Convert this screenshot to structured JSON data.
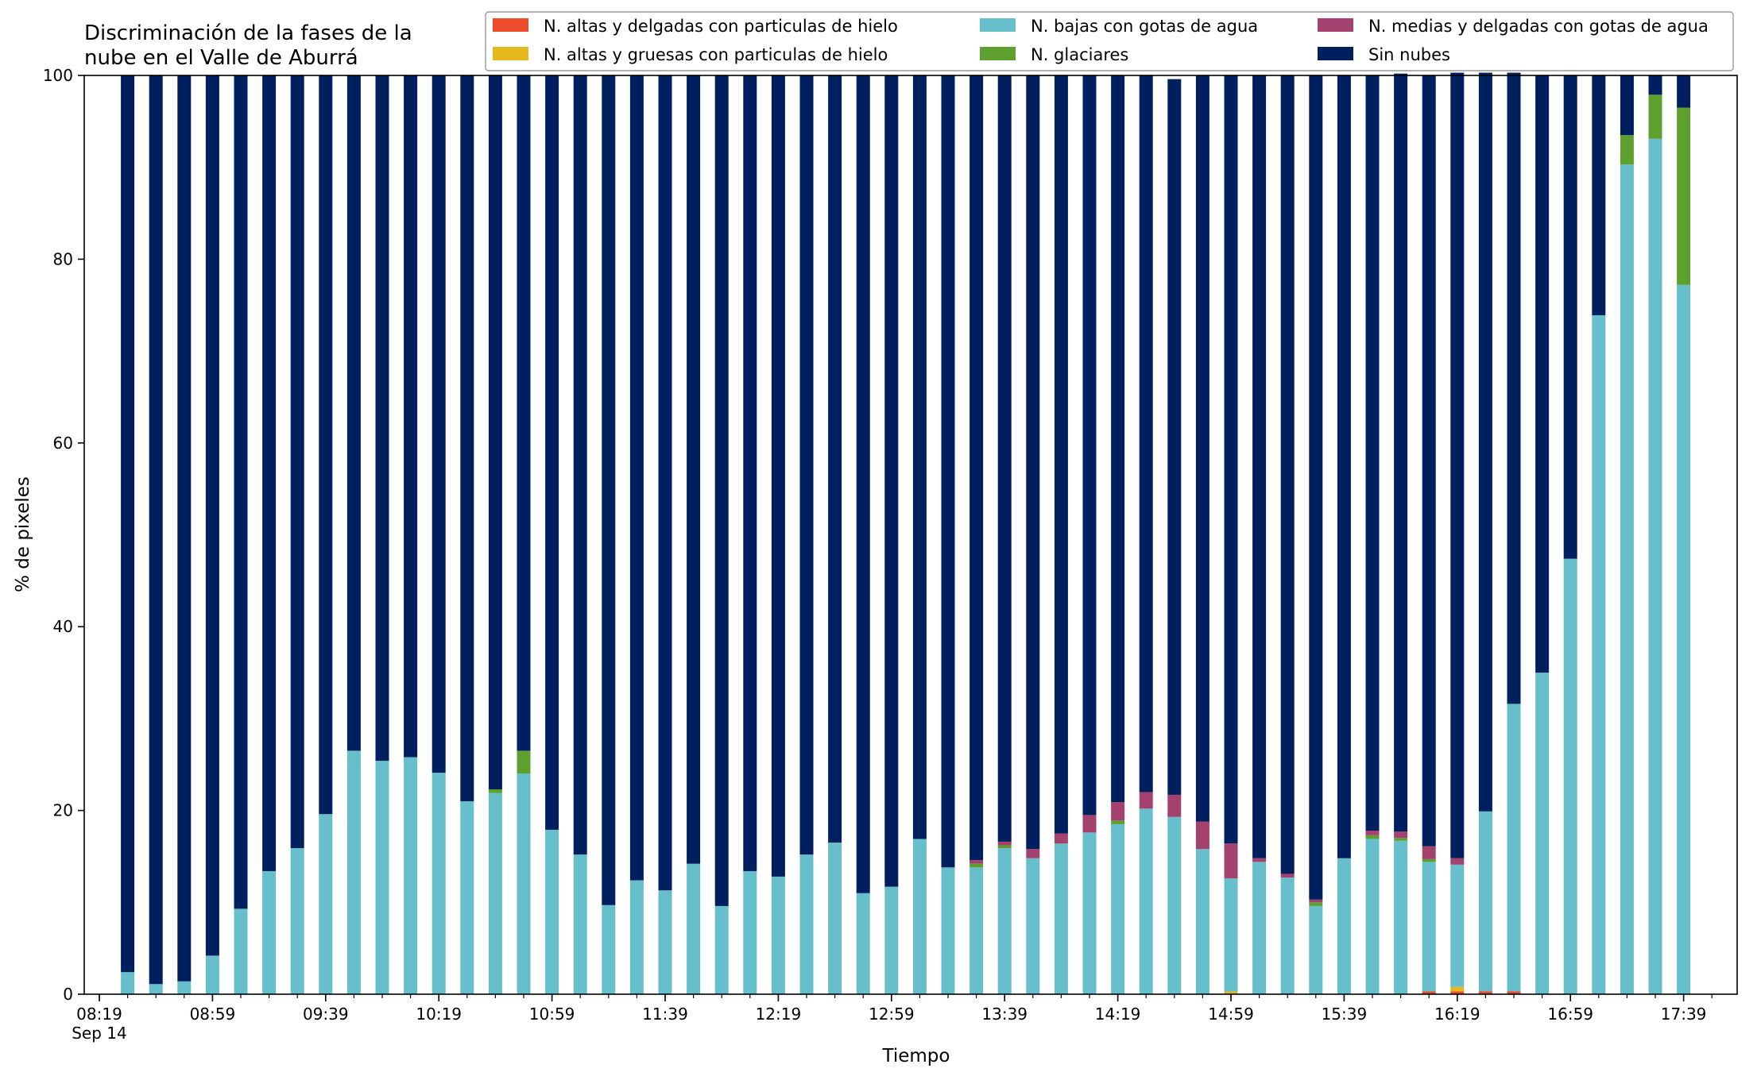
{
  "chart_data": {
    "type": "bar",
    "stacked": true,
    "title": "Discriminación de la fases de la\nnube en el Valle de Aburrá",
    "xlabel": "Tiempo",
    "ylabel": "% de pixeles",
    "ylim": [
      0,
      100
    ],
    "yticks": [
      0,
      20,
      40,
      60,
      80,
      100
    ],
    "xtick_labels": [
      "08:19\nSep 14",
      "08:59",
      "09:39",
      "10:19",
      "10:59",
      "11:39",
      "12:19",
      "12:59",
      "13:39",
      "14:19",
      "14:59",
      "15:39",
      "16:19",
      "16:59",
      "17:39"
    ],
    "grid": false,
    "legend_position": "top-right",
    "categories": [
      "08:29",
      "08:39",
      "08:49",
      "08:59",
      "09:09",
      "09:19",
      "09:29",
      "09:39",
      "09:49",
      "09:59",
      "10:09",
      "10:19",
      "10:29",
      "10:39",
      "10:49",
      "10:59",
      "11:09",
      "11:19",
      "11:29",
      "11:39",
      "11:49",
      "11:59",
      "12:09",
      "12:19",
      "12:29",
      "12:39",
      "12:49",
      "12:59",
      "13:09",
      "13:19",
      "13:29",
      "13:39",
      "13:49",
      "13:59",
      "14:09",
      "14:19",
      "14:29",
      "14:39",
      "14:49",
      "14:59",
      "15:09",
      "15:19",
      "15:29",
      "15:39",
      "15:49",
      "15:59",
      "16:09",
      "16:19",
      "16:29",
      "16:39",
      "16:49",
      "16:59",
      "17:09",
      "17:19",
      "17:29",
      "17:39",
      "17:49"
    ],
    "series": [
      {
        "name": "N. altas y delgadas con particulas de hielo",
        "color": "#ee4b2b",
        "values": [
          0,
          0,
          0,
          0,
          0,
          0,
          0,
          0,
          0,
          0,
          0,
          0,
          0,
          0,
          0,
          0,
          0,
          0,
          0,
          0,
          0,
          0,
          0,
          0,
          0,
          0,
          0,
          0,
          0,
          0,
          0,
          0,
          0,
          0,
          0,
          0,
          0,
          0,
          0,
          0,
          0,
          0,
          0,
          0,
          0,
          0,
          0.3,
          0.3,
          0.3,
          0.3,
          0,
          0,
          0,
          0,
          0,
          0,
          0
        ]
      },
      {
        "name": "N. altas y gruesas con particulas de hielo",
        "color": "#e6b81e",
        "values": [
          0,
          0,
          0,
          0,
          0,
          0,
          0,
          0,
          0,
          0,
          0,
          0,
          0,
          0,
          0,
          0,
          0,
          0,
          0,
          0,
          0,
          0,
          0,
          0,
          0,
          0,
          0,
          0,
          0,
          0,
          0,
          0,
          0,
          0,
          0,
          0,
          0,
          0,
          0,
          0.3,
          0,
          0,
          0,
          0,
          0,
          0,
          0,
          0.5,
          0,
          0,
          0,
          0,
          0,
          0,
          0,
          0,
          0
        ]
      },
      {
        "name": "N. bajas con gotas de agua",
        "color": "#66bfcb",
        "values": [
          2.4,
          1.1,
          1.4,
          4.2,
          9.3,
          13.4,
          15.9,
          19.6,
          26.5,
          25.4,
          25.8,
          24.1,
          21.0,
          21.9,
          24.0,
          17.9,
          15.2,
          9.7,
          12.4,
          11.3,
          14.2,
          9.6,
          13.4,
          12.8,
          15.2,
          16.5,
          11.0,
          11.7,
          16.9,
          13.8,
          13.8,
          15.9,
          14.8,
          16.4,
          17.6,
          18.5,
          20.2,
          19.3,
          15.8,
          12.3,
          14.4,
          12.7,
          9.6,
          14.8,
          16.9,
          16.7,
          14.1,
          13.3,
          19.6,
          31.3,
          35.0,
          47.4,
          73.9,
          90.3,
          93.1,
          77.2,
          0
        ]
      },
      {
        "name": "N. glaciares",
        "color": "#5ea02f",
        "values": [
          0,
          0,
          0,
          0,
          0,
          0,
          0,
          0,
          0,
          0,
          0,
          0,
          0,
          0.4,
          2.5,
          0,
          0,
          0,
          0,
          0,
          0,
          0,
          0,
          0,
          0,
          0,
          0,
          0,
          0,
          0,
          0.4,
          0.3,
          0,
          0,
          0,
          0.4,
          0,
          0,
          0,
          0,
          0,
          0,
          0.4,
          0,
          0.4,
          0.3,
          0.3,
          0,
          0,
          0,
          0,
          0,
          0,
          3.2,
          4.8,
          19.3,
          0
        ]
      },
      {
        "name": "N. medias y delgadas con gotas de agua",
        "color": "#a3426f",
        "values": [
          0,
          0,
          0,
          0,
          0,
          0,
          0,
          0,
          0,
          0,
          0,
          0,
          0,
          0,
          0,
          0,
          0,
          0,
          0,
          0,
          0,
          0,
          0,
          0,
          0,
          0,
          0,
          0,
          0,
          0,
          0.4,
          0.4,
          1.0,
          1.1,
          1.9,
          2.0,
          1.8,
          2.4,
          3.0,
          3.8,
          0.4,
          0.4,
          0.3,
          0,
          0.5,
          0.7,
          1.4,
          0.7,
          0,
          0,
          0,
          0,
          0,
          0,
          0,
          0,
          0
        ]
      },
      {
        "name": "Sin nubes",
        "color": "#001f5e",
        "values": [
          97.6,
          98.9,
          98.6,
          95.8,
          90.7,
          86.6,
          84.1,
          80.4,
          73.5,
          74.6,
          74.2,
          75.9,
          79.0,
          77.7,
          73.5,
          82.1,
          84.8,
          90.3,
          87.6,
          88.7,
          85.8,
          90.4,
          86.6,
          87.2,
          84.8,
          83.5,
          89.0,
          88.3,
          83.1,
          86.2,
          85.4,
          83.4,
          84.2,
          82.5,
          80.5,
          79.1,
          78.0,
          77.9,
          81.2,
          83.6,
          85.2,
          86.9,
          89.7,
          85.2,
          82.2,
          82.5,
          83.9,
          85.5,
          80.4,
          68.7,
          65.0,
          52.6,
          26.1,
          6.5,
          2.1,
          3.5,
          0
        ]
      }
    ]
  }
}
